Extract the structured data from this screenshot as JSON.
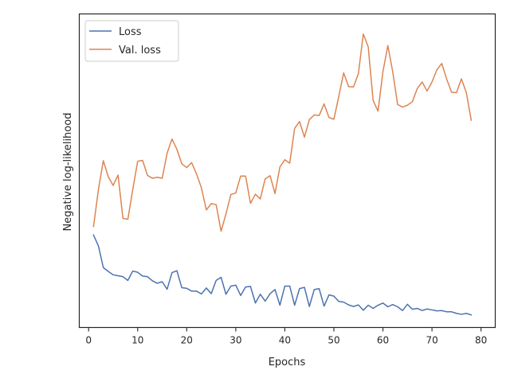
{
  "chart_data": {
    "type": "line",
    "xlabel": "Epochs",
    "ylabel": "Negative log-likelihood",
    "xlim": [
      -1.9,
      82.9
    ],
    "ylim": [
      0,
      100
    ],
    "x_ticks": [
      0,
      10,
      20,
      30,
      40,
      50,
      60,
      70,
      80
    ],
    "y_ticks_shown": false,
    "grid": false,
    "legend_position": "upper-left",
    "series": [
      {
        "name": "Loss",
        "color": "#4c72b0",
        "x": [
          1,
          2,
          3,
          4,
          5,
          6,
          7,
          8,
          9,
          10,
          11,
          12,
          13,
          14,
          15,
          16,
          17,
          18,
          19,
          20,
          21,
          22,
          23,
          24,
          25,
          26,
          27,
          28,
          29,
          30,
          31,
          32,
          33,
          34,
          35,
          36,
          37,
          38,
          39,
          40,
          41,
          42,
          43,
          44,
          45,
          46,
          47,
          48,
          49,
          50,
          51,
          52,
          53,
          54,
          55,
          56,
          57,
          58,
          59,
          60,
          61,
          62,
          63,
          64,
          65,
          66,
          67,
          68,
          69,
          70,
          71,
          72,
          73,
          74,
          75,
          76,
          77,
          78
        ],
        "values": [
          29.5,
          26.0,
          19.1,
          17.9,
          16.8,
          16.5,
          16.2,
          15.0,
          18.0,
          17.6,
          16.4,
          16.2,
          14.9,
          14.1,
          14.6,
          12.2,
          17.5,
          18.1,
          12.7,
          12.5,
          11.6,
          11.6,
          10.7,
          12.6,
          10.8,
          15.0,
          16.0,
          10.6,
          13.2,
          13.5,
          10.2,
          12.9,
          13.1,
          7.8,
          10.6,
          8.4,
          10.8,
          12.1,
          7.1,
          13.2,
          13.2,
          7.1,
          12.4,
          12.8,
          6.7,
          12.1,
          12.4,
          6.8,
          10.4,
          10.0,
          8.3,
          8.1,
          7.2,
          6.7,
          7.2,
          5.5,
          7.1,
          6.1,
          7.1,
          7.8,
          6.6,
          7.3,
          6.6,
          5.4,
          7.4,
          5.8,
          6.1,
          5.4,
          5.9,
          5.6,
          5.3,
          5.4,
          5.0,
          5.0,
          4.5,
          4.2,
          4.5,
          4.0
        ]
      },
      {
        "name": "Val. loss",
        "color": "#dd8452",
        "x": [
          1,
          2,
          3,
          4,
          5,
          6,
          7,
          8,
          9,
          10,
          11,
          12,
          13,
          14,
          15,
          16,
          17,
          18,
          19,
          20,
          21,
          22,
          23,
          24,
          25,
          26,
          27,
          28,
          29,
          30,
          31,
          32,
          33,
          34,
          35,
          36,
          37,
          38,
          39,
          40,
          41,
          42,
          43,
          44,
          45,
          46,
          47,
          48,
          49,
          50,
          51,
          52,
          53,
          54,
          55,
          56,
          57,
          58,
          59,
          60,
          61,
          62,
          63,
          64,
          65,
          66,
          67,
          68,
          69,
          70,
          71,
          72,
          73,
          74,
          75,
          76,
          77,
          78
        ],
        "values": [
          32.2,
          44.0,
          53.2,
          48.1,
          45.3,
          48.6,
          34.8,
          34.5,
          44.0,
          53.0,
          53.3,
          48.5,
          47.6,
          47.9,
          47.6,
          55.6,
          60.1,
          56.8,
          52.2,
          51.0,
          52.6,
          49.0,
          44.5,
          37.5,
          39.5,
          39.2,
          30.7,
          36.2,
          42.4,
          42.9,
          48.3,
          48.3,
          39.6,
          42.5,
          41.0,
          47.4,
          48.4,
          42.7,
          51.2,
          53.5,
          52.4,
          63.5,
          65.7,
          60.7,
          66.3,
          67.8,
          67.6,
          71.3,
          67.0,
          66.4,
          73.7,
          81.2,
          76.8,
          76.7,
          81.0,
          93.6,
          89.5,
          72.4,
          69.0,
          81.6,
          89.9,
          81.5,
          71.1,
          70.3,
          70.9,
          72.0,
          76.2,
          78.3,
          75.4,
          78.3,
          82.2,
          84.2,
          79.2,
          75.0,
          74.9,
          79.3,
          74.9,
          66.1
        ]
      }
    ]
  }
}
